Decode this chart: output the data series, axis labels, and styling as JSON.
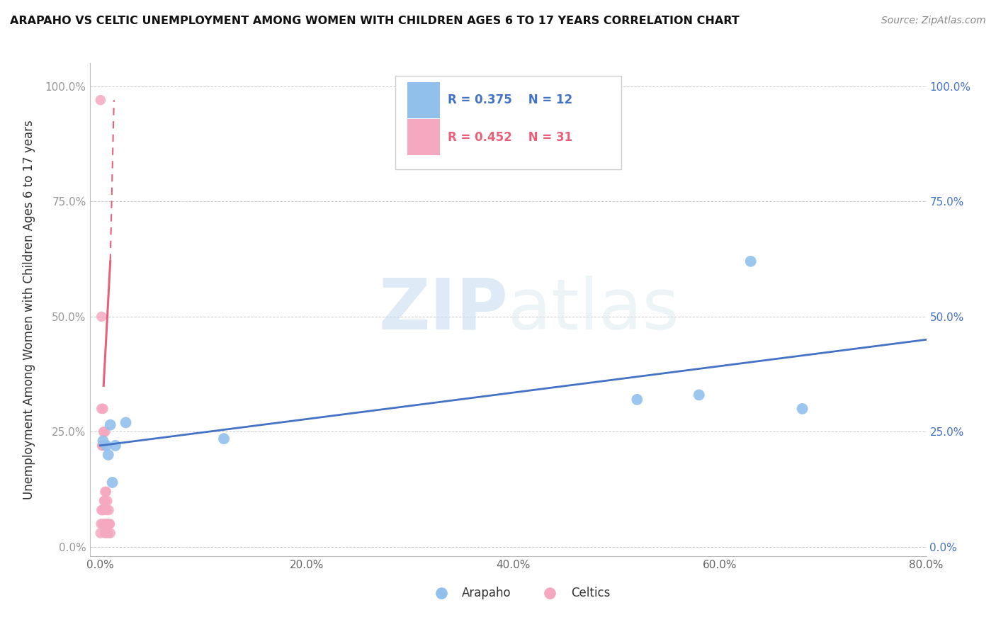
{
  "title": "ARAPAHO VS CELTIC UNEMPLOYMENT AMONG WOMEN WITH CHILDREN AGES 6 TO 17 YEARS CORRELATION CHART",
  "source": "Source: ZipAtlas.com",
  "ylabel": "Unemployment Among Women with Children Ages 6 to 17 years",
  "xlabel_ticks": [
    "0.0%",
    "20.0%",
    "40.0%",
    "60.0%",
    "80.0%"
  ],
  "xlabel_vals": [
    0,
    20,
    40,
    60,
    80
  ],
  "ylabel_ticks": [
    "0.0%",
    "25.0%",
    "50.0%",
    "75.0%",
    "100.0%"
  ],
  "ylabel_vals": [
    0,
    25,
    50,
    75,
    100
  ],
  "xlim": [
    -1,
    80
  ],
  "ylim": [
    -2,
    105
  ],
  "watermark_zip": "ZIP",
  "watermark_atlas": "atlas",
  "legend_r_arapaho": "R = 0.375",
  "legend_n_arapaho": "N = 12",
  "legend_r_celtic": "R = 0.452",
  "legend_n_celtic": "N = 31",
  "arapaho_color": "#91c0ed",
  "celtic_color": "#f5a8c0",
  "arapaho_line_color": "#4472c4",
  "celtic_line_color": "#e8607a",
  "arapaho_x": [
    0.3,
    0.6,
    0.8,
    1.0,
    1.2,
    1.5,
    2.5,
    12.0,
    52.0,
    58.0,
    63.0,
    68.0
  ],
  "arapaho_y": [
    23.0,
    22.0,
    20.0,
    26.5,
    14.0,
    22.0,
    27.0,
    23.5,
    32.0,
    33.0,
    62.0,
    30.0
  ],
  "celtic_x": [
    0.05,
    0.05,
    0.1,
    0.15,
    0.15,
    0.15,
    0.2,
    0.25,
    0.25,
    0.3,
    0.3,
    0.35,
    0.35,
    0.4,
    0.4,
    0.45,
    0.5,
    0.5,
    0.5,
    0.5,
    0.5,
    0.6,
    0.6,
    0.65,
    0.7,
    0.75,
    0.75,
    0.85,
    0.9,
    0.95,
    1.0
  ],
  "celtic_y": [
    97.0,
    3.0,
    5.0,
    50.0,
    30.0,
    8.0,
    22.0,
    22.0,
    8.0,
    30.0,
    5.0,
    25.0,
    8.0,
    25.0,
    10.0,
    10.0,
    25.0,
    12.0,
    10.0,
    5.0,
    3.0,
    12.0,
    5.0,
    8.0,
    10.0,
    5.0,
    3.0,
    8.0,
    5.0,
    5.0,
    3.0
  ],
  "background_color": "#ffffff",
  "grid_color": "#cccccc",
  "arapaho_trend_x0": 0,
  "arapaho_trend_y0": 22.0,
  "arapaho_trend_x1": 80,
  "arapaho_trend_y1": 45.0,
  "celtic_solid_x0": 0.35,
  "celtic_solid_y0": 35.0,
  "celtic_solid_x1": 1.0,
  "celtic_solid_y1": 62.0,
  "celtic_dash_x0": 1.0,
  "celtic_dash_y0": 62.0,
  "celtic_dash_x1": 1.35,
  "celtic_dash_y1": 97.0
}
